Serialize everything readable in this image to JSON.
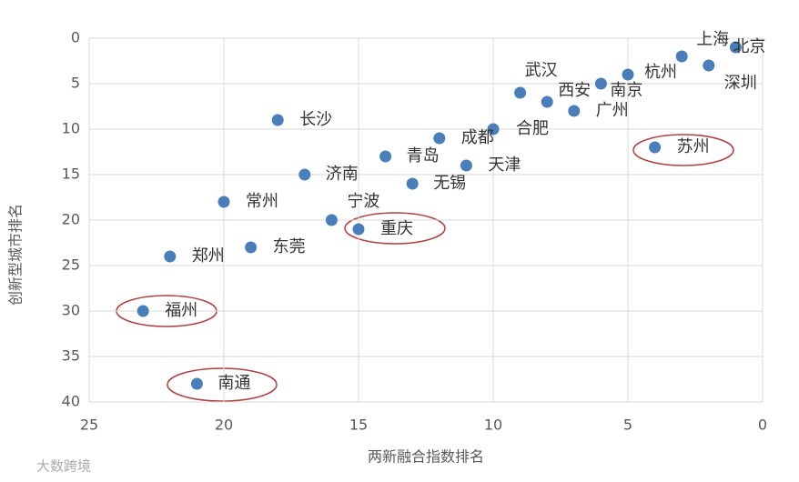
{
  "chart_data": {
    "type": "scatter",
    "x_label": "两新融合指数排名",
    "y_label": "创新型城市排名",
    "labels": [
      "上海",
      "北京",
      "深圳",
      "杭州",
      "南京",
      "西安",
      "武汉",
      "广州",
      "合肥",
      "成都",
      "天津",
      "青岛",
      "无锡",
      "济南",
      "长沙",
      "宁波",
      "重庆",
      "常州",
      "东莞",
      "郑州",
      "福州",
      "南通",
      "苏州"
    ],
    "x": [
      3,
      1,
      2,
      5,
      6,
      8,
      9,
      7,
      10,
      12,
      11,
      14,
      13,
      17,
      18,
      16,
      15,
      20,
      19,
      22,
      23,
      21,
      4
    ],
    "values": [
      2,
      1,
      3,
      4,
      5,
      7,
      6,
      8,
      10,
      11,
      14,
      13,
      16,
      15,
      9,
      20,
      21,
      18,
      23,
      24,
      30,
      38,
      12
    ],
    "color": "#4a7ebb",
    "xlim": [
      25,
      0
    ],
    "xticks": [
      25,
      20,
      15,
      10,
      5,
      0
    ],
    "ylim": [
      0,
      40
    ],
    "yticks": [
      0,
      5,
      10,
      15,
      20,
      25,
      30,
      35,
      40
    ],
    "grid": true,
    "watermark": "大数跨境"
  }
}
